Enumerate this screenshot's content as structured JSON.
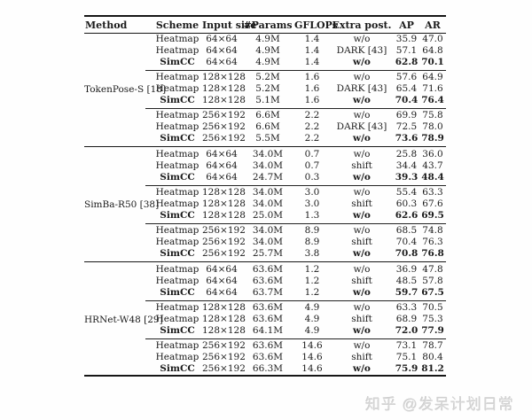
{
  "watermark": {
    "brand": "知乎",
    "handle": "@发呆计划日常",
    "color": "#d5d5d5"
  },
  "table": {
    "headers": [
      "Method",
      "Scheme",
      "Input size",
      "#Params",
      "GFLOPs",
      "Extra post.",
      "AP",
      "AR"
    ],
    "blocks": [
      {
        "method": "TokenPose-S [18]",
        "groups": [
          {
            "rows": [
              {
                "scheme": "Heatmap",
                "input": "64×64",
                "params": "4.9M",
                "gflops": "1.4",
                "extra": "w/o",
                "ap": "35.9",
                "ar": "47.0",
                "bold": false
              },
              {
                "scheme": "Heatmap",
                "input": "64×64",
                "params": "4.9M",
                "gflops": "1.4",
                "extra": "DARK [43]",
                "ap": "57.1",
                "ar": "64.8",
                "bold": false
              },
              {
                "scheme": "SimCC",
                "input": "64×64",
                "params": "4.9M",
                "gflops": "1.4",
                "extra": "w/o",
                "ap": "62.8",
                "ar": "70.1",
                "bold": true
              }
            ]
          },
          {
            "rows": [
              {
                "scheme": "Heatmap",
                "input": "128×128",
                "params": "5.2M",
                "gflops": "1.6",
                "extra": "w/o",
                "ap": "57.6",
                "ar": "64.9",
                "bold": false
              },
              {
                "scheme": "Heatmap",
                "input": "128×128",
                "params": "5.2M",
                "gflops": "1.6",
                "extra": "DARK [43]",
                "ap": "65.4",
                "ar": "71.6",
                "bold": false
              },
              {
                "scheme": "SimCC",
                "input": "128×128",
                "params": "5.1M",
                "gflops": "1.6",
                "extra": "w/o",
                "ap": "70.4",
                "ar": "76.4",
                "bold": true
              }
            ]
          },
          {
            "rows": [
              {
                "scheme": "Heatmap",
                "input": "256×192",
                "params": "6.6M",
                "gflops": "2.2",
                "extra": "w/o",
                "ap": "69.9",
                "ar": "75.8",
                "bold": false
              },
              {
                "scheme": "Heatmap",
                "input": "256×192",
                "params": "6.6M",
                "gflops": "2.2",
                "extra": "DARK [43]",
                "ap": "72.5",
                "ar": "78.0",
                "bold": false
              },
              {
                "scheme": "SimCC",
                "input": "256×192",
                "params": "5.5M",
                "gflops": "2.2",
                "extra": "w/o",
                "ap": "73.6",
                "ar": "78.9",
                "bold": true
              }
            ]
          }
        ]
      },
      {
        "method": "SimBa-R50 [38]",
        "groups": [
          {
            "rows": [
              {
                "scheme": "Heatmap",
                "input": "64×64",
                "params": "34.0M",
                "gflops": "0.7",
                "extra": "w/o",
                "ap": "25.8",
                "ar": "36.0",
                "bold": false
              },
              {
                "scheme": "Heatmap",
                "input": "64×64",
                "params": "34.0M",
                "gflops": "0.7",
                "extra": "shift",
                "ap": "34.4",
                "ar": "43.7",
                "bold": false
              },
              {
                "scheme": "SimCC",
                "input": "64×64",
                "params": "24.7M",
                "gflops": "0.3",
                "extra": "w/o",
                "ap": "39.3",
                "ar": "48.4",
                "bold": true
              }
            ]
          },
          {
            "rows": [
              {
                "scheme": "Heatmap",
                "input": "128×128",
                "params": "34.0M",
                "gflops": "3.0",
                "extra": "w/o",
                "ap": "55.4",
                "ar": "63.3",
                "bold": false
              },
              {
                "scheme": "Heatmap",
                "input": "128×128",
                "params": "34.0M",
                "gflops": "3.0",
                "extra": "shift",
                "ap": "60.3",
                "ar": "67.6",
                "bold": false
              },
              {
                "scheme": "SimCC",
                "input": "128×128",
                "params": "25.0M",
                "gflops": "1.3",
                "extra": "w/o",
                "ap": "62.6",
                "ar": "69.5",
                "bold": true
              }
            ]
          },
          {
            "rows": [
              {
                "scheme": "Heatmap",
                "input": "256×192",
                "params": "34.0M",
                "gflops": "8.9",
                "extra": "w/o",
                "ap": "68.5",
                "ar": "74.8",
                "bold": false
              },
              {
                "scheme": "Heatmap",
                "input": "256×192",
                "params": "34.0M",
                "gflops": "8.9",
                "extra": "shift",
                "ap": "70.4",
                "ar": "76.3",
                "bold": false
              },
              {
                "scheme": "SimCC",
                "input": "256×192",
                "params": "25.7M",
                "gflops": "3.8",
                "extra": "w/o",
                "ap": "70.8",
                "ar": "76.8",
                "bold": true
              }
            ]
          }
        ]
      },
      {
        "method": "HRNet-W48 [29]",
        "groups": [
          {
            "rows": [
              {
                "scheme": "Heatmap",
                "input": "64×64",
                "params": "63.6M",
                "gflops": "1.2",
                "extra": "w/o",
                "ap": "36.9",
                "ar": "47.8",
                "bold": false
              },
              {
                "scheme": "Heatmap",
                "input": "64×64",
                "params": "63.6M",
                "gflops": "1.2",
                "extra": "shift",
                "ap": "48.5",
                "ar": "57.8",
                "bold": false
              },
              {
                "scheme": "SimCC",
                "input": "64×64",
                "params": "63.7M",
                "gflops": "1.2",
                "extra": "w/o",
                "ap": "59.7",
                "ar": "67.5",
                "bold": true
              }
            ]
          },
          {
            "rows": [
              {
                "scheme": "Heatmap",
                "input": "128×128",
                "params": "63.6M",
                "gflops": "4.9",
                "extra": "w/o",
                "ap": "63.3",
                "ar": "70.5",
                "bold": false
              },
              {
                "scheme": "Heatmap",
                "input": "128×128",
                "params": "63.6M",
                "gflops": "4.9",
                "extra": "shift",
                "ap": "68.9",
                "ar": "75.3",
                "bold": false
              },
              {
                "scheme": "SimCC",
                "input": "128×128",
                "params": "64.1M",
                "gflops": "4.9",
                "extra": "w/o",
                "ap": "72.0",
                "ar": "77.9",
                "bold": true
              }
            ]
          },
          {
            "rows": [
              {
                "scheme": "Heatmap",
                "input": "256×192",
                "params": "63.6M",
                "gflops": "14.6",
                "extra": "w/o",
                "ap": "73.1",
                "ar": "78.7",
                "bold": false
              },
              {
                "scheme": "Heatmap",
                "input": "256×192",
                "params": "63.6M",
                "gflops": "14.6",
                "extra": "shift",
                "ap": "75.1",
                "ar": "80.4",
                "bold": false
              },
              {
                "scheme": "SimCC",
                "input": "256×192",
                "params": "66.3M",
                "gflops": "14.6",
                "extra": "w/o",
                "ap": "75.9",
                "ar": "81.2",
                "bold": true
              }
            ]
          }
        ]
      }
    ]
  }
}
